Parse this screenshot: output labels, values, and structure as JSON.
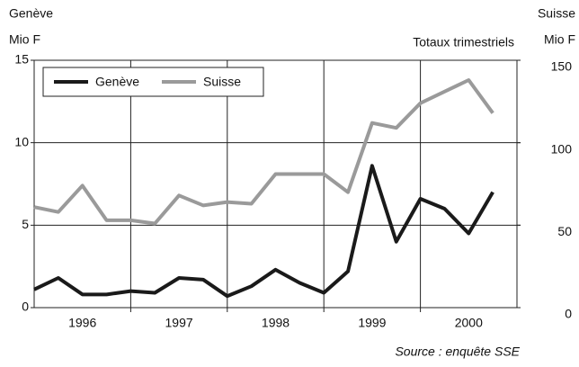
{
  "chart_data": {
    "type": "line",
    "left_axis_title": [
      "Genève",
      "Mio F"
    ],
    "right_axis_title": [
      "Suisse",
      "Mio F"
    ],
    "subtitle": "Totaux trimestriels",
    "source": "Source : enquête SSE",
    "x": [
      1996,
      1996.25,
      1996.5,
      1996.75,
      1997,
      1997.25,
      1997.5,
      1997.75,
      1998,
      1998.25,
      1998.5,
      1998.75,
      1999,
      1999.25,
      1999.5,
      1999.75,
      2000,
      2000.25,
      2000.5,
      2000.75
    ],
    "xlim": [
      1996,
      2001
    ],
    "xticks": [
      {
        "value": 1996.5,
        "label": "1996"
      },
      {
        "value": 1997.5,
        "label": "1997"
      },
      {
        "value": 1998.5,
        "label": "1998"
      },
      {
        "value": 1999.5,
        "label": "1999"
      },
      {
        "value": 2000.5,
        "label": "2000"
      }
    ],
    "xgrid": [
      1997,
      1998,
      1999,
      2000
    ],
    "ylim": [
      0,
      15
    ],
    "yticks": [
      0,
      5,
      10,
      15
    ],
    "y2lim": [
      0,
      150
    ],
    "y2ticks": [
      0,
      50,
      100,
      150
    ],
    "grid": true,
    "legend": "upper left",
    "series": [
      {
        "name": "Genève",
        "color": "#1a1a1a",
        "values": [
          1.1,
          1.8,
          0.8,
          0.8,
          1.0,
          0.9,
          1.8,
          1.7,
          0.7,
          1.3,
          2.3,
          1.5,
          0.9,
          2.2,
          8.6,
          4.0,
          6.6,
          6.0,
          4.5,
          7.0
        ]
      },
      {
        "name": "Suisse",
        "color": "#9a9a9a",
        "axis": "y2",
        "values": [
          61,
          58,
          74,
          53,
          53,
          51,
          68,
          62,
          64,
          63,
          81,
          81,
          81,
          70,
          112,
          109,
          124,
          131,
          138,
          118
        ]
      }
    ]
  }
}
